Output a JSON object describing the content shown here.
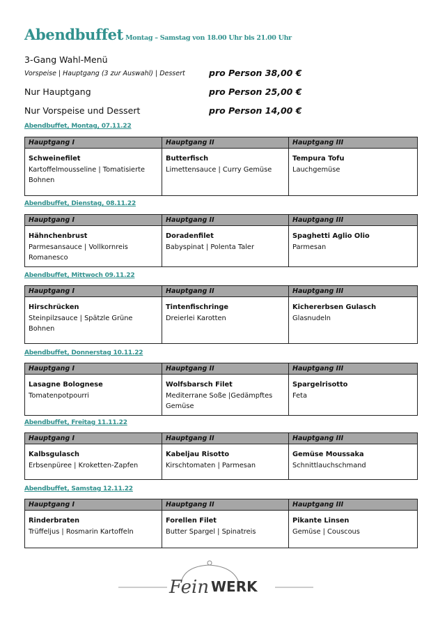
{
  "header": {
    "title": "Abendbuffet",
    "subtitle": "Montag – Samstag von 18.00 Uhr bis 21.00 Uhr"
  },
  "offers": [
    {
      "label": "3-Gang Wahl-Menü",
      "detail": "Vorspeise | Hauptgang (3 zur Auswahl) | Dessert",
      "price": "pro Person 38,00 €"
    },
    {
      "label": "Nur Hauptgang",
      "price": "pro Person 25,00 €"
    },
    {
      "label": "Nur Vorspeise und Dessert",
      "price": "pro Person 14,00 €"
    }
  ],
  "columns": [
    "Hauptgang I",
    "Hauptgang II",
    "Hauptgang III"
  ],
  "days": [
    {
      "label": "Abendbuffet, Montag, 07.11.22",
      "dishes": [
        {
          "name": "Schweinefilet",
          "sides": "Kartoffelmousseline | Tomatisierte Bohnen"
        },
        {
          "name": "Butterfisch",
          "sides": "Limettensauce | Curry Gemüse"
        },
        {
          "name": "Tempura Tofu",
          "sides": "Lauchgemüse"
        }
      ]
    },
    {
      "label": "Abendbuffet, Dienstag, 08.11.22",
      "dishes": [
        {
          "name": "Hähnchenbrust",
          "sides": "Parmesansauce | Vollkornreis Romanesco"
        },
        {
          "name": "Doradenfilet",
          "sides": "Babyspinat | Polenta Taler"
        },
        {
          "name": "Spaghetti Aglio Olio",
          "sides": "Parmesan"
        }
      ]
    },
    {
      "label": "Abendbuffet, Mittwoch 09.11.22",
      "dishes": [
        {
          "name": "Hirschrücken",
          "sides": "Steinpilzsauce | Spätzle Grüne Bohnen"
        },
        {
          "name": "Tintenfischringe",
          "sides": "Dreierlei Karotten"
        },
        {
          "name": "Kichererbsen Gulasch",
          "sides": "Glasnudeln"
        }
      ]
    },
    {
      "label": "Abendbuffet, Donnerstag 10.11.22",
      "dishes": [
        {
          "name": "Lasagne Bolognese",
          "sides": "Tomatenpotpourri"
        },
        {
          "name": "Wolfsbarsch Filet",
          "sides": "Mediterrane Soße |Gedämpftes Gemüse"
        },
        {
          "name": "Spargelrisotto",
          "sides": "Feta"
        }
      ]
    },
    {
      "label": "Abendbuffet, Freitag 11.11.22",
      "dishes": [
        {
          "name": "Kalbsgulasch",
          "sides": "Erbsenpüree | Kroketten-Zapfen"
        },
        {
          "name": "Kabeljau Risotto",
          "sides": "Kirschtomaten | Parmesan"
        },
        {
          "name": "Gemüse Moussaka",
          "sides": "Schnittlauchschmand"
        }
      ]
    },
    {
      "label": "Abendbuffet, Samstag 12.11.22",
      "dishes": [
        {
          "name": "Rinderbraten",
          "sides": "Trüffeljus | Rosmarin Kartoffeln"
        },
        {
          "name": "Forellen Filet",
          "sides": "Butter Spargel | Spinatreis"
        },
        {
          "name": "Pikante Linsen",
          "sides": "Gemüse | Couscous"
        }
      ]
    }
  ],
  "logo": {
    "text_script": "Fein",
    "text_bold": "WERK"
  },
  "colors": {
    "accent": "#31918e",
    "header_bg": "#a6a6a6"
  }
}
